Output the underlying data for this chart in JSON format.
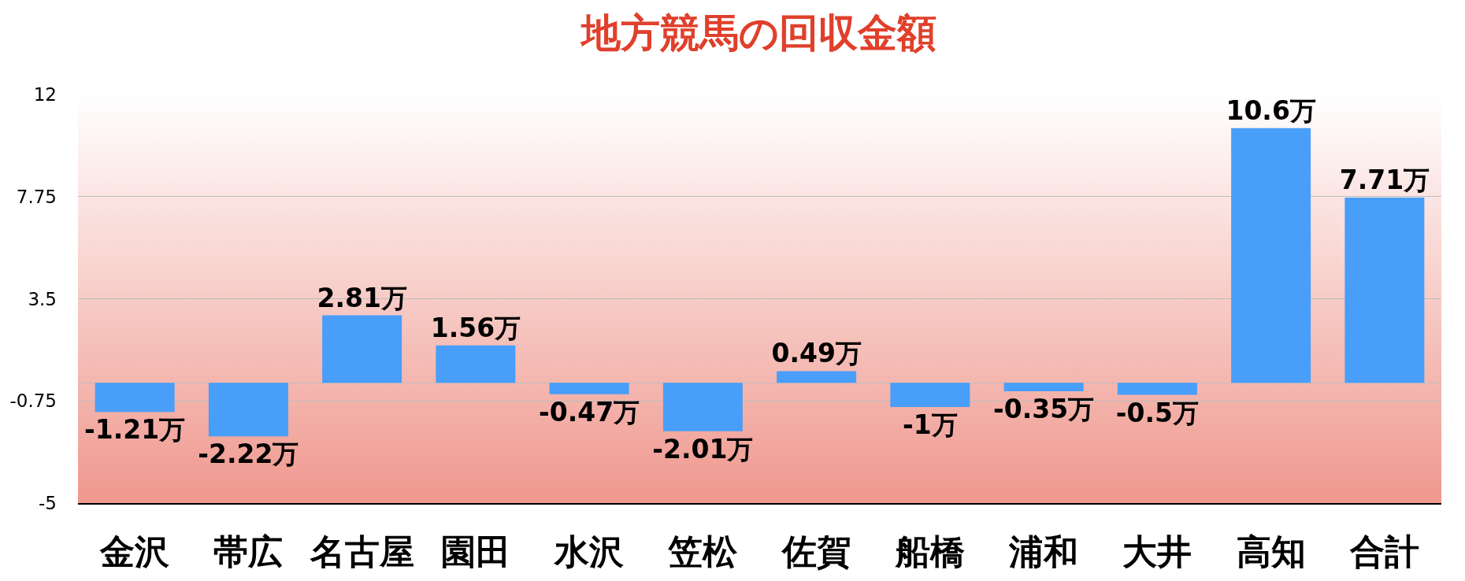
{
  "chart_data": {
    "type": "bar",
    "title": "地方競馬の回収金額",
    "categories": [
      "金沢",
      "帯広",
      "名古屋",
      "園田",
      "水沢",
      "笠松",
      "佐賀",
      "船橋",
      "浦和",
      "大井",
      "高知",
      "合計"
    ],
    "values": [
      -1.21,
      -2.22,
      2.81,
      1.56,
      -0.47,
      -2.01,
      0.49,
      -1,
      -0.35,
      -0.5,
      10.6,
      7.71
    ],
    "value_labels": [
      "-1.21万",
      "-2.22万",
      "2.81万",
      "1.56万",
      "-0.47万",
      "-2.01万",
      "0.49万",
      "-1万",
      "-0.35万",
      "-0.5万",
      "10.6万",
      "7.71万"
    ],
    "color": "#489ef8",
    "ylim": [
      -5,
      12
    ],
    "yticks": [
      -5,
      -0.75,
      3.5,
      7.75,
      12
    ],
    "grid": "y"
  }
}
